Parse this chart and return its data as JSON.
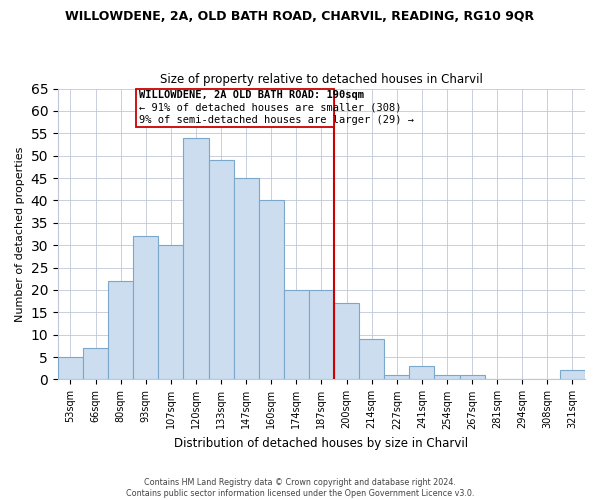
{
  "title": "WILLOWDENE, 2A, OLD BATH ROAD, CHARVIL, READING, RG10 9QR",
  "subtitle": "Size of property relative to detached houses in Charvil",
  "xlabel": "Distribution of detached houses by size in Charvil",
  "ylabel": "Number of detached properties",
  "bar_labels": [
    "53sqm",
    "66sqm",
    "80sqm",
    "93sqm",
    "107sqm",
    "120sqm",
    "133sqm",
    "147sqm",
    "160sqm",
    "174sqm",
    "187sqm",
    "200sqm",
    "214sqm",
    "227sqm",
    "241sqm",
    "254sqm",
    "267sqm",
    "281sqm",
    "294sqm",
    "308sqm",
    "321sqm"
  ],
  "bar_heights": [
    5,
    7,
    22,
    32,
    30,
    54,
    49,
    45,
    40,
    20,
    20,
    17,
    9,
    1,
    3,
    1,
    1,
    0,
    0,
    0,
    2
  ],
  "bar_color": "#ccddf0",
  "bar_edge_color": "#7ba7cb",
  "vline_x": 10.5,
  "vline_color": "#cc0000",
  "annotation_title": "WILLOWDENE, 2A OLD BATH ROAD: 190sqm",
  "annotation_line1": "← 91% of detached houses are smaller (308)",
  "annotation_line2": "9% of semi-detached houses are larger (29) →",
  "ylim": [
    0,
    65
  ],
  "yticks": [
    0,
    5,
    10,
    15,
    20,
    25,
    30,
    35,
    40,
    45,
    50,
    55,
    60,
    65
  ],
  "footer1": "Contains HM Land Registry data © Crown copyright and database right 2024.",
  "footer2": "Contains public sector information licensed under the Open Government Licence v3.0."
}
